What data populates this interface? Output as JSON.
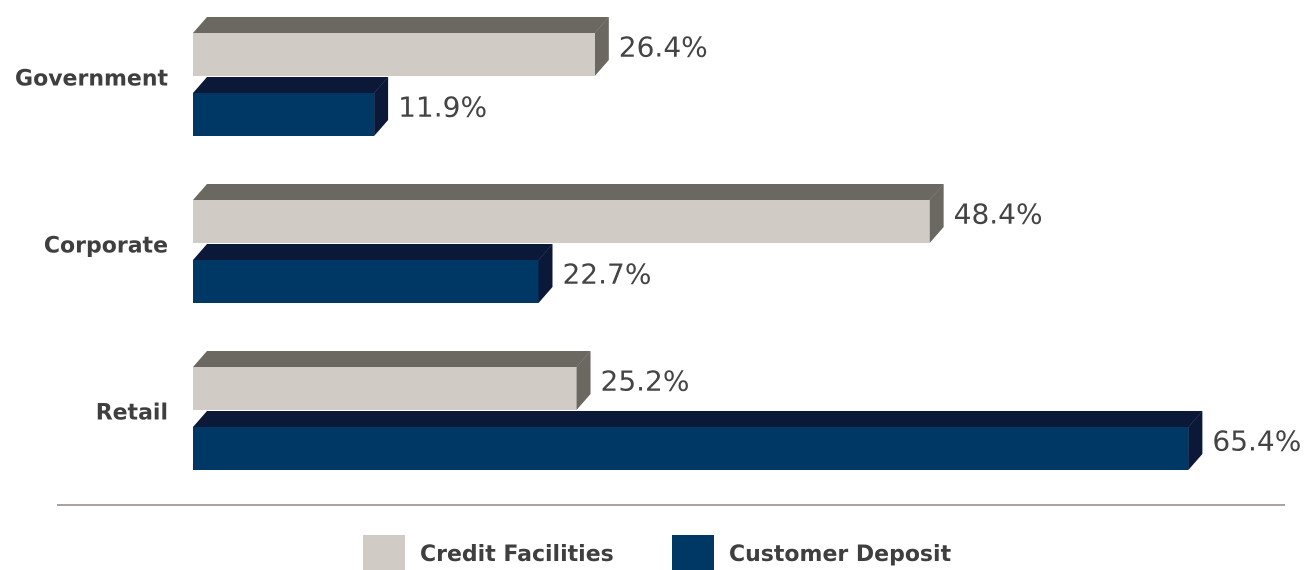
{
  "chart_data": {
    "type": "bar",
    "orientation": "horizontal",
    "categories": [
      "Government",
      "Corporate",
      "Retail"
    ],
    "series": [
      {
        "name": "Credit Facilities",
        "color": "#d0cbc5",
        "values": [
          26.4,
          48.4,
          25.2
        ],
        "value_labels": [
          "26.4%",
          "48.4%",
          "25.2%"
        ]
      },
      {
        "name": "Customer Deposit",
        "color": "#003865",
        "values": [
          11.9,
          22.7,
          65.4
        ],
        "value_labels": [
          "11.9%",
          "22.7%",
          "65.4%"
        ]
      }
    ],
    "legend": "bottom"
  }
}
